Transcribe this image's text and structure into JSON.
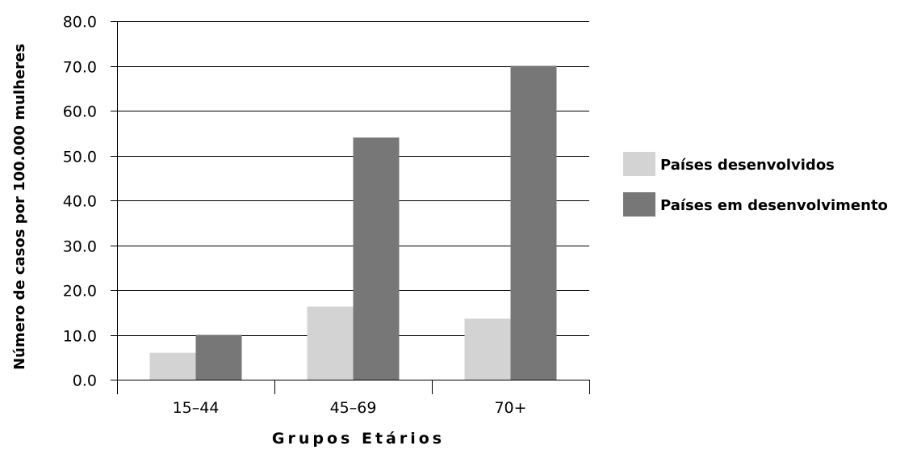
{
  "chart_data": {
    "type": "bar",
    "title": "",
    "xlabel": "Grupos Etários",
    "ylabel": "Número de casos por 100.000 mulheres",
    "categories": [
      "15–44",
      "45–69",
      "70+"
    ],
    "series": [
      {
        "name": "Países desenvolvidos",
        "color": "#d3d3d3",
        "values": [
          6.0,
          16.3,
          13.6
        ]
      },
      {
        "name": "Países em desenvolvimento",
        "color": "#777777",
        "values": [
          10.0,
          54.0,
          70.0
        ]
      }
    ],
    "ylim": [
      0,
      80
    ],
    "yticks": [
      "0.0",
      "10.0",
      "20.0",
      "30.0",
      "40.0",
      "50.0",
      "60.0",
      "70.0",
      "80.0"
    ],
    "grid": true,
    "legend_position": "right"
  }
}
